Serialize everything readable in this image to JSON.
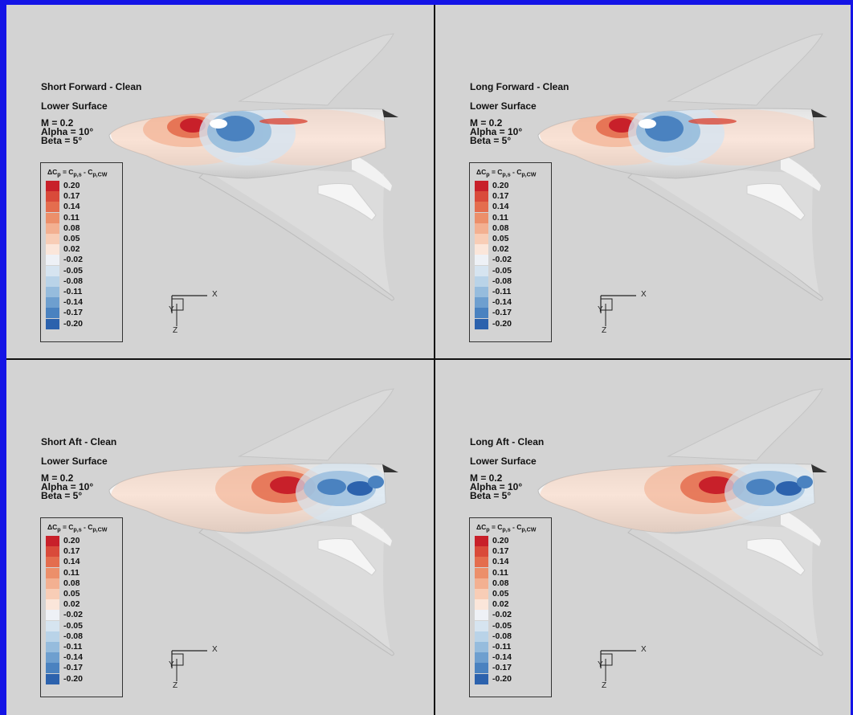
{
  "panels": [
    {
      "title": "Short Forward - Clean",
      "surface": "Lower Surface",
      "mach": "M = 0.2",
      "alpha": "Alpha = 10°",
      "beta": "Beta = 5°",
      "variant": "forward"
    },
    {
      "title": "Long Forward - Clean",
      "surface": "Lower Surface",
      "mach": "M = 0.2",
      "alpha": "Alpha = 10°",
      "beta": "Beta = 5°",
      "variant": "forward"
    },
    {
      "title": "Short Aft - Clean",
      "surface": "Lower Surface",
      "mach": "M = 0.2",
      "alpha": "Alpha = 10°",
      "beta": "Beta = 5°",
      "variant": "aft"
    },
    {
      "title": "Long Aft - Clean",
      "surface": "Lower Surface",
      "mach": "M = 0.2",
      "alpha": "Alpha = 10°",
      "beta": "Beta = 5°",
      "variant": "aft"
    }
  ],
  "legend": {
    "title_html": "ΔC<sub>p</sub> = C<sub>p,s</sub> - C<sub>p,CW</sub>",
    "levels": [
      "0.20",
      "0.17",
      "0.14",
      "0.11",
      "0.08",
      "0.05",
      "0.02",
      "-0.02",
      "-0.05",
      "-0.08",
      "-0.11",
      "-0.14",
      "-0.17",
      "-0.20"
    ],
    "colors": [
      "#c8202a",
      "#d94a3a",
      "#e46d4e",
      "#ec8f6a",
      "#f3b091",
      "#f8cdb6",
      "#fbe6da",
      "#eef1f6",
      "#d6e4f0",
      "#b9d3e8",
      "#96bcdd",
      "#6e9fcf",
      "#4a82c0",
      "#2c62ad"
    ]
  },
  "axes": {
    "x": "X",
    "y": "Y",
    "z": "Z"
  }
}
